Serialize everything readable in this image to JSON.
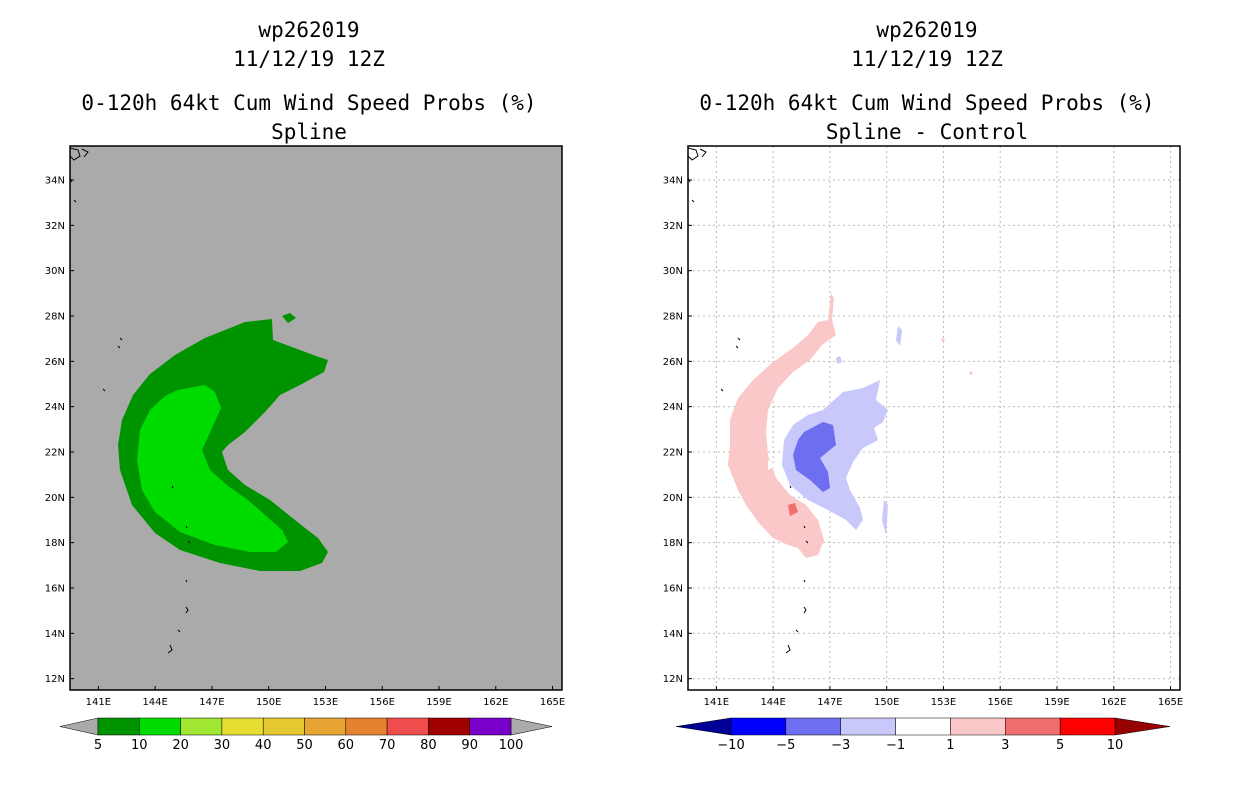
{
  "chart_data": [
    {
      "type": "heatmap",
      "storm_id": "wp262019",
      "date": "11/12/19 12Z",
      "title": "0-120h 64kt Cum Wind Speed Probs (%)",
      "subtitle": "Spline",
      "xlabel": "",
      "ylabel": "",
      "xlim": [
        139.5,
        165.5
      ],
      "ylim": [
        11.5,
        35.5
      ],
      "x_ticks": [
        "141E",
        "144E",
        "147E",
        "150E",
        "153E",
        "156E",
        "159E",
        "162E",
        "165E"
      ],
      "y_ticks": [
        "34N",
        "32N",
        "30N",
        "28N",
        "26N",
        "24N",
        "22N",
        "20N",
        "18N",
        "16N",
        "14N",
        "12N"
      ],
      "background_color": "#aaaaaa",
      "grid": false,
      "colorbar": {
        "labels": [
          "5",
          "10",
          "20",
          "30",
          "40",
          "50",
          "60",
          "70",
          "80",
          "90",
          "100"
        ],
        "colors": [
          "#009300",
          "#00dc00",
          "#a0e632",
          "#e6dc32",
          "#e6c832",
          "#e6a532",
          "#e6822d",
          "#f04e4e",
          "#a00000",
          "#7800c8"
        ],
        "end_color": "#aaaaaa"
      },
      "regions": [
        {
          "level": "5-10%",
          "color": "#009300"
        },
        {
          "level": "10-20%",
          "color": "#00dc00"
        }
      ]
    },
    {
      "type": "heatmap",
      "storm_id": "wp262019",
      "date": "11/12/19 12Z",
      "title": "0-120h 64kt Cum Wind Speed Probs (%)",
      "subtitle": "Spline - Control",
      "xlabel": "",
      "ylabel": "",
      "xlim": [
        139.5,
        165.5
      ],
      "ylim": [
        11.5,
        35.5
      ],
      "x_ticks": [
        "141E",
        "144E",
        "147E",
        "150E",
        "153E",
        "156E",
        "159E",
        "162E",
        "165E"
      ],
      "y_ticks": [
        "34N",
        "32N",
        "30N",
        "28N",
        "26N",
        "24N",
        "22N",
        "20N",
        "18N",
        "16N",
        "14N",
        "12N"
      ],
      "background_color": "#ffffff",
      "grid": true,
      "colorbar": {
        "labels": [
          "-10",
          "-5",
          "-3",
          "-1",
          "1",
          "3",
          "5",
          "10"
        ],
        "colors": [
          "#0000ff",
          "#6e6ef0",
          "#c8c8fa",
          "#ffffff",
          "#fac8c8",
          "#f06e6e",
          "#ff0000"
        ],
        "end_low": "#000096",
        "end_high": "#960000"
      },
      "regions": [
        {
          "level": "1 to 3",
          "color": "#fac8c8"
        },
        {
          "level": "-3 to -1",
          "color": "#c8c8fa"
        },
        {
          "level": "-5 to -3",
          "color": "#6e6ef0"
        },
        {
          "level": "3 to 5",
          "color": "#f06e6e"
        }
      ]
    }
  ]
}
